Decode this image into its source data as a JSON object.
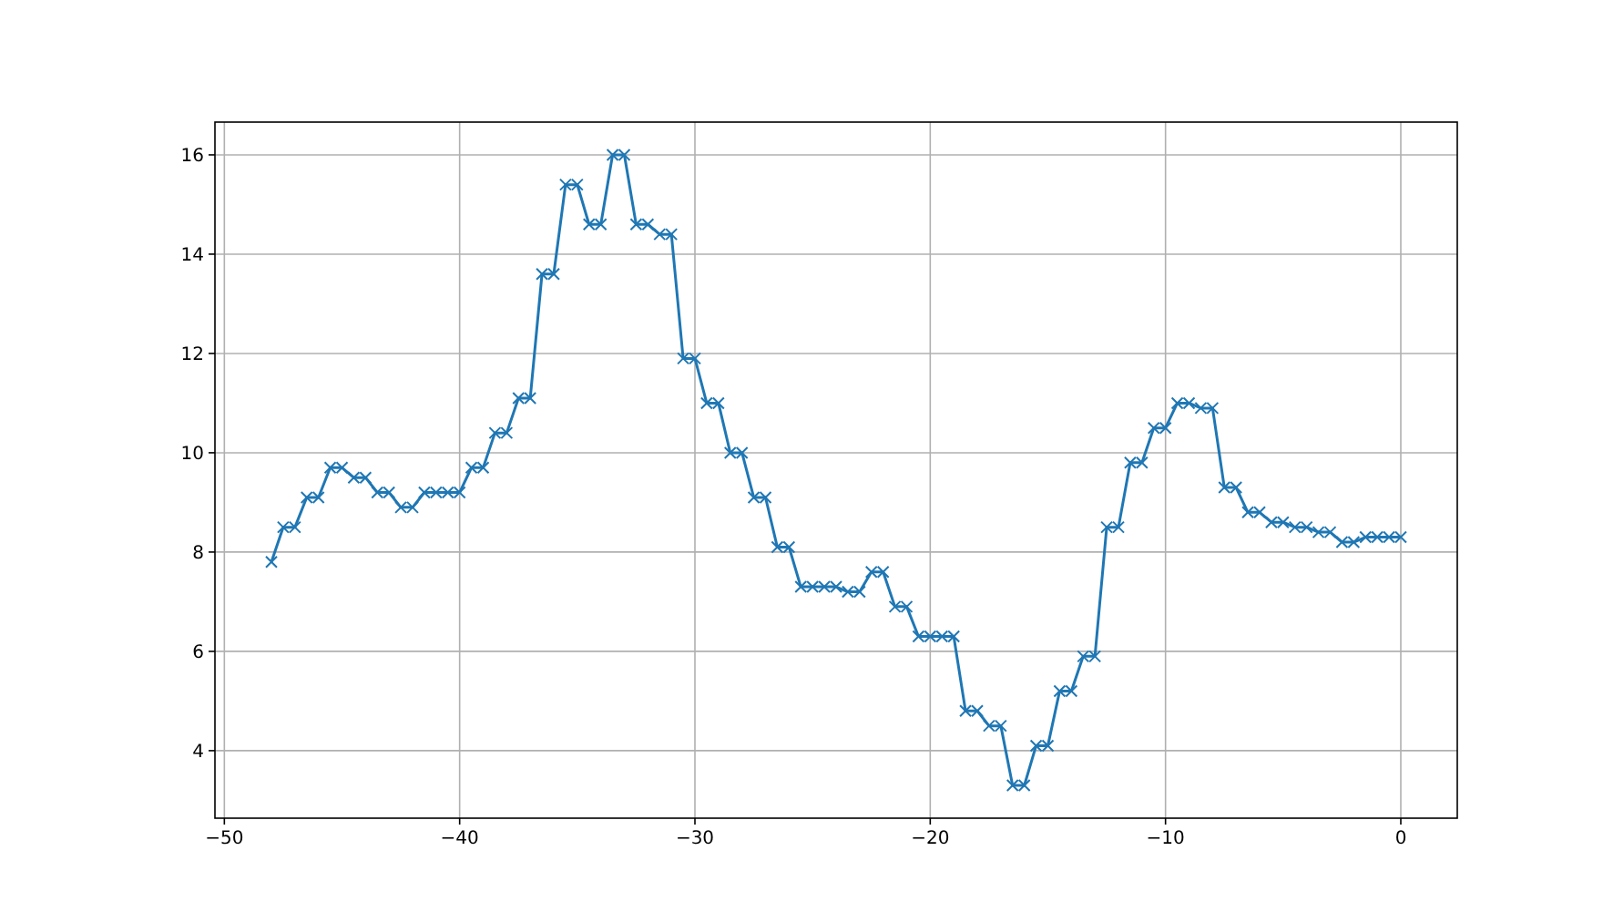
{
  "chart_data": {
    "type": "line",
    "marker": "cross",
    "grid": true,
    "x": [
      -48,
      -47.5,
      -47,
      -46.5,
      -46,
      -45.5,
      -45,
      -44.5,
      -44,
      -43.5,
      -43,
      -42.5,
      -42,
      -41.5,
      -41,
      -40.5,
      -40,
      -39.5,
      -39,
      -38.5,
      -38,
      -37.5,
      -37,
      -36.5,
      -36,
      -35.5,
      -35,
      -34.5,
      -34,
      -33.5,
      -33,
      -32.5,
      -32,
      -31.5,
      -31,
      -30.5,
      -30,
      -29.5,
      -29,
      -28.5,
      -28,
      -27.5,
      -27,
      -26.5,
      -26,
      -25.5,
      -25,
      -24.5,
      -24,
      -23.5,
      -23,
      -22.5,
      -22,
      -21.5,
      -21,
      -20.5,
      -20,
      -19.5,
      -19,
      -18.5,
      -18,
      -17.5,
      -17,
      -16.5,
      -16,
      -15.5,
      -15,
      -14.5,
      -14,
      -13.5,
      -13,
      -12.5,
      -12,
      -11.5,
      -11,
      -10.5,
      -10,
      -9.5,
      -9,
      -8.5,
      -8,
      -7.5,
      -7,
      -6.5,
      -6,
      -5.5,
      -5,
      -4.5,
      -4,
      -3.5,
      -3,
      -2.5,
      -2,
      -1.5,
      -1,
      -0.5,
      0
    ],
    "series": [
      {
        "color": "#1f77b4",
        "values": [
          7.8,
          8.5,
          8.5,
          9.1,
          9.1,
          9.7,
          9.7,
          9.5,
          9.5,
          9.2,
          9.2,
          8.9,
          8.9,
          9.2,
          9.2,
          9.2,
          9.2,
          9.7,
          9.7,
          10.4,
          10.4,
          11.1,
          11.1,
          13.6,
          13.6,
          15.4,
          15.4,
          14.6,
          14.6,
          16.0,
          16.0,
          14.6,
          14.6,
          14.4,
          14.4,
          11.9,
          11.9,
          11.0,
          11.0,
          10.0,
          10.0,
          9.1,
          9.1,
          8.1,
          8.1,
          7.3,
          7.3,
          7.3,
          7.3,
          7.2,
          7.2,
          7.6,
          7.6,
          6.9,
          6.9,
          6.3,
          6.3,
          6.3,
          6.3,
          4.8,
          4.8,
          4.5,
          4.5,
          3.3,
          3.3,
          4.1,
          4.1,
          5.2,
          5.2,
          5.9,
          5.9,
          8.5,
          8.5,
          9.8,
          9.8,
          10.5,
          10.5,
          11.0,
          11.0,
          10.9,
          10.9,
          9.3,
          9.3,
          8.8,
          8.8,
          8.6,
          8.6,
          8.5,
          8.5,
          8.4,
          8.4,
          8.2,
          8.2,
          8.3,
          8.3,
          8.3,
          8.3
        ]
      }
    ],
    "xlim": [
      -50.4,
      2.4
    ],
    "ylim": [
      2.64,
      16.66
    ],
    "xticks": [
      -50,
      -40,
      -30,
      -20,
      -10,
      0
    ],
    "yticks": [
      4,
      6,
      8,
      10,
      12,
      14,
      16
    ]
  }
}
